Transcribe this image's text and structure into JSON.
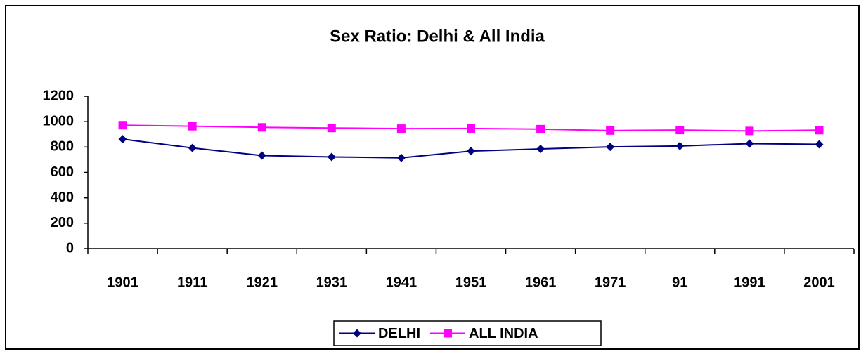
{
  "chart_data": {
    "type": "line",
    "title": "Sex Ratio: Delhi & All India",
    "categories": [
      "1901",
      "1911",
      "1921",
      "1931",
      "1941",
      "1951",
      "1961",
      "1971",
      "91",
      "1991",
      "2001"
    ],
    "series": [
      {
        "name": "DELHI",
        "color": "#000080",
        "marker": "diamond",
        "values": [
          862,
          793,
          733,
          722,
          715,
          768,
          785,
          801,
          808,
          827,
          821
        ]
      },
      {
        "name": "ALL INDIA",
        "color": "#ff00ff",
        "marker": "square",
        "values": [
          972,
          964,
          955,
          950,
          945,
          946,
          941,
          930,
          934,
          927,
          933
        ]
      }
    ],
    "ylim": [
      0,
      1200
    ],
    "yticks": [
      0,
      200,
      400,
      600,
      800,
      1000,
      1200
    ],
    "grid": false,
    "legend": "bottom"
  }
}
